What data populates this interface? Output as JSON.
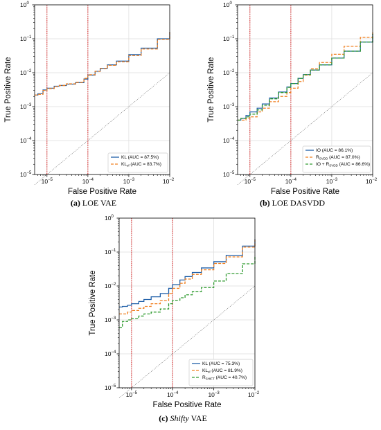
{
  "chart_data": [
    {
      "type": "line",
      "caption_bold": "(a)",
      "caption_rest": "LOE VAE",
      "xlabel": "False Positive Rate",
      "ylabel": "True Positive Rate",
      "x_scale": "log",
      "y_scale": "log",
      "xlim": [
        5e-06,
        0.01
      ],
      "ylim": [
        1e-05,
        1
      ],
      "xticks": [
        {
          "value": 1e-05,
          "base": "10",
          "exp": "−5"
        },
        {
          "value": 0.0001,
          "base": "10",
          "exp": "−4"
        },
        {
          "value": 0.001,
          "base": "10",
          "exp": "−3"
        },
        {
          "value": 0.01,
          "base": "10",
          "exp": "−2"
        }
      ],
      "yticks": [
        {
          "value": 1e-05,
          "base": "10",
          "exp": "−5"
        },
        {
          "value": 0.0001,
          "base": "10",
          "exp": "−4"
        },
        {
          "value": 0.001,
          "base": "10",
          "exp": "−3"
        },
        {
          "value": 0.01,
          "base": "10",
          "exp": "−2"
        },
        {
          "value": 0.1,
          "base": "10",
          "exp": "−1"
        },
        {
          "value": 1,
          "base": "10",
          "exp": "0"
        }
      ],
      "vlines": [
        1e-05,
        0.0001
      ],
      "grid": true,
      "legend_position": "lower-right",
      "series": [
        {
          "label": "KL (AUC = 87.5%)",
          "color": "#1f5fa8",
          "dash": "solid",
          "x": [
            5e-06,
            6e-06,
            8e-06,
            1e-05,
            1.5e-05,
            2e-05,
            3e-05,
            5e-05,
            8e-05,
            0.0001,
            0.00015,
            0.0002,
            0.0003,
            0.0005,
            0.001,
            0.002,
            0.005,
            0.01
          ],
          "y": [
            0.0022,
            0.0024,
            0.0031,
            0.0035,
            0.004,
            0.0042,
            0.0046,
            0.0051,
            0.0065,
            0.0085,
            0.011,
            0.0135,
            0.017,
            0.022,
            0.034,
            0.053,
            0.1,
            0.16
          ]
        },
        {
          "label": "KL",
          "label_sub": "sf",
          "label_rest": " (AUC = 83.7%)",
          "color": "#f07f1f",
          "dash": "4,2",
          "x": [
            5e-06,
            6e-06,
            8e-06,
            1e-05,
            1.5e-05,
            2e-05,
            3e-05,
            5e-05,
            8e-05,
            0.0001,
            0.00015,
            0.0002,
            0.0003,
            0.0005,
            0.001,
            0.002,
            0.005,
            0.01
          ],
          "y": [
            0.0022,
            0.0023,
            0.003,
            0.0034,
            0.0039,
            0.0042,
            0.0047,
            0.0052,
            0.0068,
            0.0087,
            0.011,
            0.0132,
            0.0165,
            0.021,
            0.032,
            0.05,
            0.096,
            0.155
          ]
        },
        {
          "label": "",
          "color": "#666666",
          "dash": "1,1.5",
          "thin": true,
          "x": [
            5e-06,
            0.01
          ],
          "y": [
            5e-06,
            0.01
          ]
        }
      ]
    },
    {
      "type": "line",
      "caption_bold": "(b)",
      "caption_rest": "LOE DASVDD",
      "xlabel": "False Positive Rate",
      "ylabel": "True Positive Rate",
      "x_scale": "log",
      "y_scale": "log",
      "xlim": [
        5e-06,
        0.01
      ],
      "ylim": [
        1e-05,
        1
      ],
      "xticks": [
        {
          "value": 1e-05,
          "base": "10",
          "exp": "−5"
        },
        {
          "value": 0.0001,
          "base": "10",
          "exp": "−4"
        },
        {
          "value": 0.001,
          "base": "10",
          "exp": "−3"
        },
        {
          "value": 0.01,
          "base": "10",
          "exp": "−2"
        }
      ],
      "yticks": [
        {
          "value": 1e-05,
          "base": "10",
          "exp": "−5"
        },
        {
          "value": 0.0001,
          "base": "10",
          "exp": "−4"
        },
        {
          "value": 0.001,
          "base": "10",
          "exp": "−3"
        },
        {
          "value": 0.01,
          "base": "10",
          "exp": "−2"
        },
        {
          "value": 0.1,
          "base": "10",
          "exp": "−1"
        },
        {
          "value": 1,
          "base": "10",
          "exp": "0"
        }
      ],
      "vlines": [
        1e-05,
        0.0001
      ],
      "grid": true,
      "legend_position": "lower-right",
      "series": [
        {
          "label": "IO (AUC = 86.1%)",
          "color": "#1f5fa8",
          "dash": "solid",
          "x": [
            5e-06,
            6e-06,
            8e-06,
            1e-05,
            1.5e-05,
            2e-05,
            3e-05,
            5e-05,
            8e-05,
            0.0001,
            0.00015,
            0.0002,
            0.0003,
            0.0005,
            0.001,
            0.002,
            0.005,
            0.01
          ],
          "y": [
            0.0004,
            0.00045,
            0.00055,
            0.0007,
            0.0009,
            0.0012,
            0.0018,
            0.0027,
            0.0038,
            0.0048,
            0.0068,
            0.0088,
            0.012,
            0.017,
            0.027,
            0.043,
            0.08,
            0.14
          ]
        },
        {
          "label": "R",
          "label_sub": "SVDD",
          "label_rest": " (AUC = 87.0%)",
          "color": "#f07f1f",
          "dash": "4,2",
          "x": [
            5e-06,
            6e-06,
            8e-06,
            1e-05,
            1.5e-05,
            2e-05,
            3e-05,
            5e-05,
            8e-05,
            0.0001,
            0.00015,
            0.0002,
            0.0003,
            0.0005,
            0.001,
            0.002,
            0.005,
            0.01
          ],
          "y": [
            0.0004,
            0.0004,
            0.00045,
            0.0005,
            0.0007,
            0.0009,
            0.0014,
            0.002,
            0.0026,
            0.0035,
            0.0055,
            0.0085,
            0.013,
            0.02,
            0.035,
            0.06,
            0.11,
            0.16
          ]
        },
        {
          "label": "IO + R",
          "label_sub": "SVDD",
          "label_rest": " (AUC = 86.6%)",
          "color": "#2e9a2e",
          "dash": "4,2",
          "x": [
            5e-06,
            6e-06,
            8e-06,
            1e-05,
            1.5e-05,
            2e-05,
            3e-05,
            5e-05,
            8e-05,
            0.0001,
            0.00015,
            0.0002,
            0.0003,
            0.0005,
            0.001,
            0.002,
            0.005,
            0.01
          ],
          "y": [
            0.0004,
            0.00045,
            0.0005,
            0.0006,
            0.0008,
            0.0011,
            0.0017,
            0.0026,
            0.0037,
            0.0048,
            0.0068,
            0.0088,
            0.012,
            0.017,
            0.027,
            0.043,
            0.08,
            0.14
          ]
        },
        {
          "label": "",
          "color": "#666666",
          "dash": "1,1.5",
          "thin": true,
          "x": [
            5e-06,
            0.01
          ],
          "y": [
            5e-06,
            0.01
          ]
        }
      ]
    },
    {
      "type": "line",
      "caption_bold": "(c)",
      "caption_italic": "Shifty",
      "caption_rest": " VAE",
      "xlabel": "False Positive Rate",
      "ylabel": "True Positive Rate",
      "x_scale": "log",
      "y_scale": "log",
      "xlim": [
        5e-06,
        0.01
      ],
      "ylim": [
        1e-05,
        1
      ],
      "xticks": [
        {
          "value": 1e-05,
          "base": "10",
          "exp": "−5"
        },
        {
          "value": 0.0001,
          "base": "10",
          "exp": "−4"
        },
        {
          "value": 0.001,
          "base": "10",
          "exp": "−3"
        },
        {
          "value": 0.01,
          "base": "10",
          "exp": "−2"
        }
      ],
      "yticks": [
        {
          "value": 1e-05,
          "base": "10",
          "exp": "−5"
        },
        {
          "value": 0.0001,
          "base": "10",
          "exp": "−4"
        },
        {
          "value": 0.001,
          "base": "10",
          "exp": "−3"
        },
        {
          "value": 0.01,
          "base": "10",
          "exp": "−2"
        },
        {
          "value": 0.1,
          "base": "10",
          "exp": "−1"
        },
        {
          "value": 1,
          "base": "10",
          "exp": "0"
        }
      ],
      "vlines": [
        1e-05,
        0.0001
      ],
      "grid": true,
      "legend_position": "lower-right",
      "series": [
        {
          "label": "KL (AUC = 75.3%)",
          "color": "#1f5fa8",
          "dash": "solid",
          "x": [
            5e-06,
            6e-06,
            8e-06,
            1e-05,
            1.5e-05,
            2e-05,
            3e-05,
            5e-05,
            8e-05,
            0.0001,
            0.00015,
            0.0002,
            0.0003,
            0.0005,
            0.001,
            0.002,
            0.005,
            0.01
          ],
          "y": [
            0.0024,
            0.0025,
            0.0027,
            0.003,
            0.0035,
            0.004,
            0.0048,
            0.006,
            0.0085,
            0.011,
            0.015,
            0.019,
            0.025,
            0.034,
            0.052,
            0.08,
            0.15,
            0.24
          ]
        },
        {
          "label": "KL",
          "label_sub": "sf",
          "label_rest": " (AUC = 81.9%)",
          "color": "#f07f1f",
          "dash": "4,2",
          "x": [
            5e-06,
            6e-06,
            8e-06,
            1e-05,
            1.5e-05,
            2e-05,
            3e-05,
            5e-05,
            8e-05,
            0.0001,
            0.00015,
            0.0002,
            0.0003,
            0.0005,
            0.001,
            0.002,
            0.005,
            0.01
          ],
          "y": [
            0.0015,
            0.0015,
            0.0017,
            0.0019,
            0.0022,
            0.0025,
            0.003,
            0.0037,
            0.006,
            0.0085,
            0.012,
            0.016,
            0.022,
            0.03,
            0.046,
            0.072,
            0.14,
            0.23
          ]
        },
        {
          "label": "R",
          "label_sub": "SHIFT",
          "label_rest": " (AUC = 40.7%)",
          "color": "#2e9a2e",
          "dash": "4,2",
          "x": [
            5e-06,
            6e-06,
            8e-06,
            1e-05,
            1.5e-05,
            2e-05,
            3e-05,
            5e-05,
            8e-05,
            0.0001,
            0.00015,
            0.0002,
            0.0003,
            0.0005,
            0.001,
            0.002,
            0.005,
            0.01
          ],
          "y": [
            0.0006,
            0.0009,
            0.001,
            0.0011,
            0.0013,
            0.0015,
            0.0017,
            0.0021,
            0.003,
            0.0038,
            0.0045,
            0.0055,
            0.0068,
            0.009,
            0.014,
            0.023,
            0.045,
            0.08
          ]
        },
        {
          "label": "",
          "color": "#666666",
          "dash": "1,1.5",
          "thin": true,
          "x": [
            5e-06,
            0.01
          ],
          "y": [
            5e-06,
            0.01
          ]
        }
      ]
    }
  ]
}
